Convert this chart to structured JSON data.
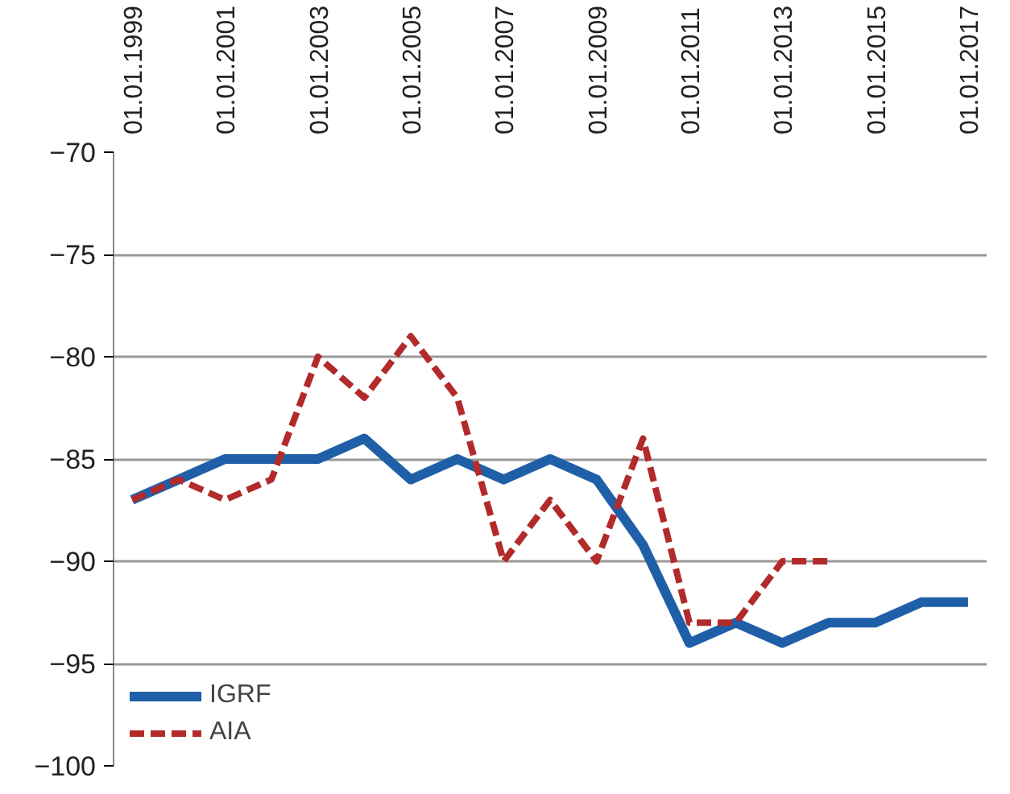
{
  "chart_data": {
    "type": "line",
    "categories": [
      "01.01.1999",
      null,
      "01.01.2001",
      null,
      "01.01.2003",
      null,
      "01.01.2005",
      null,
      "01.01.2007",
      null,
      "01.01.2009",
      null,
      "01.01.2011",
      null,
      "01.01.2013",
      null,
      "01.01.2015",
      null,
      "01.01.2017"
    ],
    "series": [
      {
        "name": "IGRF",
        "color": "#1f5fa8",
        "line_style": "solid",
        "values": [
          -87,
          -86,
          -85,
          -85,
          -85,
          -84,
          -86,
          -85,
          -86,
          -85,
          -86,
          -89.2,
          -94,
          -93,
          -94,
          -93,
          -93,
          -92,
          -92
        ]
      },
      {
        "name": "AIA",
        "color": "#b22a2a",
        "line_style": "dashed",
        "values": [
          -87,
          -86,
          -87,
          -86,
          -80,
          -82,
          -79,
          -82,
          -90,
          -87,
          -90,
          -84,
          -93,
          -93,
          -90,
          -90,
          null,
          null,
          null
        ]
      }
    ],
    "ylim": [
      -100,
      -70
    ],
    "yticks": [
      -100,
      -95,
      -90,
      -85,
      -80,
      -75,
      -70
    ],
    "grid": "y",
    "legend": "bottom left",
    "marker": "none"
  }
}
